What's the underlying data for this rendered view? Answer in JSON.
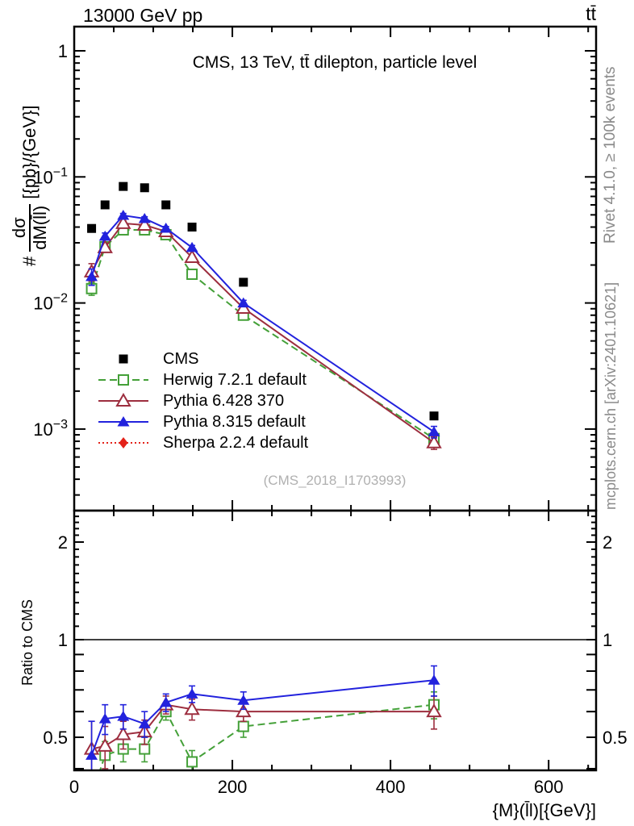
{
  "header": {
    "left": "13000 GeV pp",
    "right": "tt̄"
  },
  "panel_title": "CMS, 13 TeV, tt̄ dilepton, particle level",
  "watermark": "(CMS_2018_I1703993)",
  "side_notes": {
    "top": "Rivet 4.1.0, ≥ 100k events",
    "bottom": "mcplots.cern.ch [arXiv:2401.10621]"
  },
  "axes": {
    "y_main_title": {
      "prefix": "#",
      "numerator": "dσ",
      "denominator": "dM(l̄l)",
      "units": "[{pb}/{GeV}]"
    },
    "y_ratio_title": "Ratio to CMS",
    "x_title": "{M}(l̄l)[{GeV}]"
  },
  "chart_data": {
    "type": "line",
    "title": "CMS, 13 TeV, tt̄ dilepton, particle level",
    "xlabel": "{M}(l̄l)[{GeV}]",
    "ylabel_main": "# dσ/dM(l̄l) [{pb}/{GeV}]",
    "ylabel_ratio": "Ratio to CMS",
    "x_range": [
      0,
      660
    ],
    "y_main_range": [
      0.000225,
      1.56
    ],
    "y_ratio_range": [
      0.395,
      2.5
    ],
    "x_major_ticks": [
      0,
      200,
      400,
      600
    ],
    "x_minor_step": 50,
    "y_main_ticks": [
      {
        "value": 1,
        "base": "1",
        "exp": ""
      },
      {
        "value": 0.1,
        "base": "10",
        "exp": "−1"
      },
      {
        "value": 0.01,
        "base": "10",
        "exp": "−2"
      },
      {
        "value": 0.001,
        "base": "10",
        "exp": "−3"
      }
    ],
    "y_ratio_ticks": [
      {
        "value": 2,
        "label": "2"
      },
      {
        "value": 1,
        "label": "1"
      },
      {
        "value": 0.5,
        "label": "0.5"
      }
    ],
    "reference_line": 1,
    "x": [
      22,
      39,
      62,
      89,
      116,
      149,
      214,
      455
    ],
    "series": [
      {
        "name": "CMS",
        "color": "#000000",
        "marker": "filled-square",
        "line": "none",
        "values": [
          0.039,
          0.06,
          0.084,
          0.082,
          0.06,
          0.04,
          0.0146,
          0.00127
        ],
        "errors": [],
        "ratio": [],
        "ratio_errors": []
      },
      {
        "name": "Herwig 7.2.1 default",
        "color": "#44a038",
        "marker": "open-square",
        "line": "dashed",
        "values": [
          0.013,
          0.0279,
          0.038,
          0.038,
          0.0348,
          0.0169,
          0.008,
          0.00084
        ],
        "errors": [
          0.0015,
          0.0014,
          0.0012,
          0.0012,
          0.001,
          0.0008,
          0.0004,
          8e-05
        ],
        "ratio": [
          0.33,
          0.44,
          0.46,
          0.46,
          0.6,
          0.42,
          0.54,
          0.63
        ],
        "ratio_errors": [
          0.05,
          0.045,
          0.04,
          0.04,
          0.035,
          0.035,
          0.04,
          0.06
        ]
      },
      {
        "name": "Pythia 6.428 370",
        "color": "#9d2e3f",
        "marker": "open-triangle",
        "line": "solid",
        "values": [
          0.0177,
          0.0275,
          0.0428,
          0.0415,
          0.0369,
          0.023,
          0.0091,
          0.00078
        ],
        "errors": [
          0.0028,
          0.0022,
          0.0018,
          0.0016,
          0.0013,
          0.0011,
          0.0005,
          9e-05
        ],
        "ratio": [
          0.46,
          0.47,
          0.51,
          0.52,
          0.63,
          0.61,
          0.6,
          0.6
        ],
        "ratio_errors": [
          0.1,
          0.07,
          0.05,
          0.045,
          0.04,
          0.045,
          0.04,
          0.07
        ]
      },
      {
        "name": "Pythia 8.315 default",
        "color": "#2222dd",
        "marker": "filled-triangle",
        "line": "solid",
        "values": [
          0.0162,
          0.0338,
          0.0495,
          0.0467,
          0.0391,
          0.0275,
          0.01,
          0.00095
        ],
        "errors": [
          0.0024,
          0.0021,
          0.0018,
          0.0016,
          0.0013,
          0.0011,
          0.0005,
          0.0001
        ],
        "ratio": [
          0.44,
          0.57,
          0.58,
          0.55,
          0.64,
          0.68,
          0.65,
          0.75
        ],
        "ratio_errors": [
          0.12,
          0.06,
          0.05,
          0.05,
          0.04,
          0.04,
          0.04,
          0.08
        ]
      },
      {
        "name": "Sherpa 2.2.4 default",
        "color": "#e32219",
        "marker": "filled-diamond",
        "line": "dotted",
        "values": [],
        "errors": [],
        "ratio": [],
        "ratio_errors": []
      }
    ]
  }
}
